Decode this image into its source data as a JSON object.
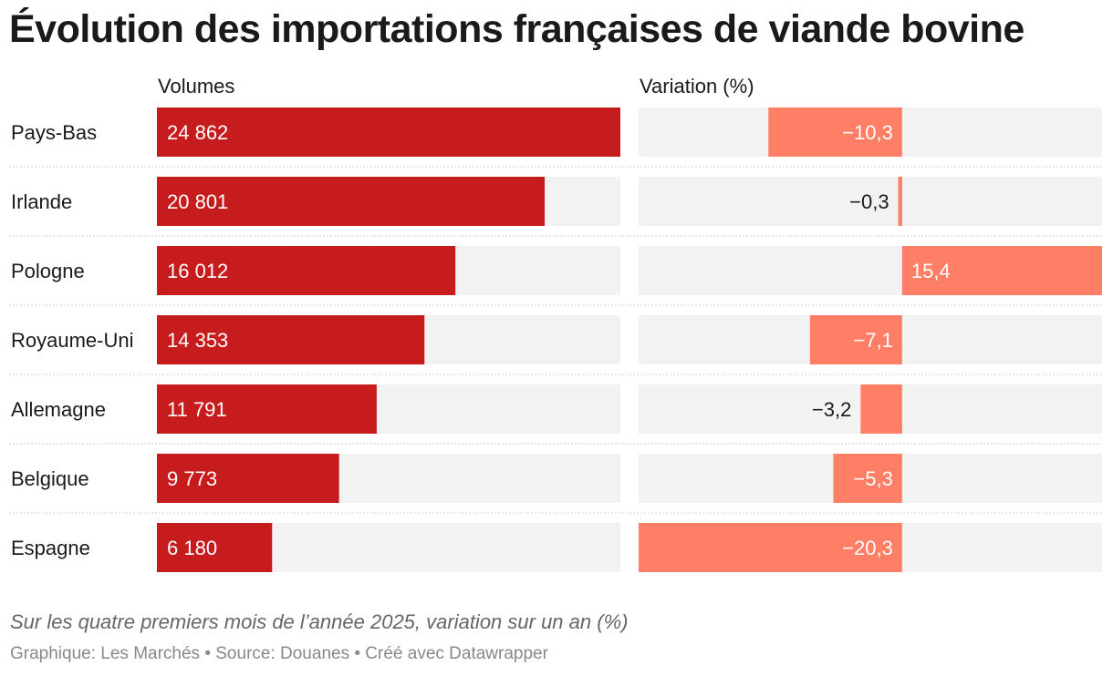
{
  "title": "Évolution des importations françaises de viande bovine",
  "notes": "Sur les quatre premiers mois de l’année 2025, variation sur un an (%)",
  "credits": "Graphique: Les Marchés • Source: Douanes • Créé avec Datawrapper",
  "colors": {
    "volume_bar": "#c71c1e",
    "variation_bar": "#ff7e66",
    "track": "#f2f2f2",
    "separator": "#cfcfcf"
  },
  "chart_data": {
    "type": "bar",
    "categories": [
      "Pays-Bas",
      "Irlande",
      "Pologne",
      "Royaume-Uni",
      "Allemagne",
      "Belgique",
      "Espagne"
    ],
    "series": [
      {
        "name": "Volumes",
        "values": [
          24862,
          20801,
          16012,
          14353,
          11791,
          9773,
          6180
        ],
        "labels": [
          "24 862",
          "20 801",
          "16 012",
          "14 353",
          "11 791",
          "9 773",
          "6 180"
        ],
        "range": [
          0,
          24862
        ]
      },
      {
        "name": "Variation (%)",
        "values": [
          -10.3,
          -0.3,
          15.4,
          -7.1,
          -3.2,
          -5.3,
          -20.3
        ],
        "labels": [
          "−10,3",
          "−0,3",
          "15,4",
          "−7,1",
          "−3,2",
          "−5,3",
          "−20,3"
        ],
        "range": [
          -20.3,
          15.4
        ]
      }
    ]
  }
}
